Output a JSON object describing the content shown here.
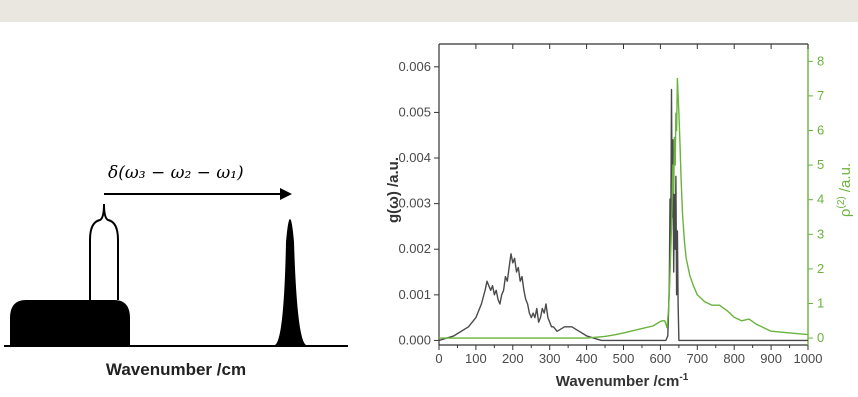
{
  "schematic": {
    "xlabel": "Wavenumber /cm",
    "equation": "δ(ω₃ − ω₂ − ω₁)"
  },
  "chart_data": {
    "type": "line",
    "xlabel": "Wavenumber /cm",
    "xlabel_sup": "-1",
    "ylabel_left": "g(ω) /a.u.",
    "ylabel_right": "ρ",
    "ylabel_right_sup": "(2)",
    "ylabel_right_suffix": " /a.u.",
    "xlim": [
      0,
      1000
    ],
    "ylim_left": [
      -0.0001,
      0.0065
    ],
    "ylim_right": [
      -0.2,
      8.5
    ],
    "x_ticks": [
      "0",
      "100",
      "200",
      "300",
      "400",
      "500",
      "600",
      "700",
      "800",
      "900",
      "1000"
    ],
    "y_left_ticks": [
      "0.000",
      "0.001",
      "0.002",
      "0.003",
      "0.004",
      "0.005",
      "0.006"
    ],
    "y_right_ticks": [
      "0",
      "1",
      "2",
      "3",
      "4",
      "5",
      "6",
      "7",
      "8"
    ],
    "colors": {
      "left_series": "#4a4a4a",
      "right_series": "#6ab33c"
    },
    "series": [
      {
        "axis": "left",
        "x": [
          0,
          40,
          80,
          100,
          115,
          125,
          130,
          135,
          140,
          145,
          150,
          155,
          160,
          165,
          170,
          175,
          180,
          185,
          190,
          195,
          200,
          205,
          210,
          215,
          220,
          225,
          230,
          235,
          240,
          245,
          250,
          255,
          260,
          265,
          270,
          275,
          280,
          285,
          290,
          295,
          300,
          305,
          310,
          320,
          340,
          360,
          380,
          400,
          440,
          480,
          520,
          560,
          600,
          615,
          620,
          622,
          624,
          626,
          628,
          630,
          632,
          634,
          636,
          638,
          640,
          642,
          644,
          646,
          648,
          650,
          655,
          660,
          680,
          720,
          800,
          900,
          1000
        ],
        "y": [
          0.0,
          0.0001,
          0.0003,
          0.0005,
          0.0008,
          0.0011,
          0.0013,
          0.0012,
          0.0011,
          0.0012,
          0.001,
          0.0011,
          0.0009,
          0.0008,
          0.001,
          0.0011,
          0.0014,
          0.0013,
          0.0016,
          0.0019,
          0.0017,
          0.0018,
          0.0015,
          0.0016,
          0.0013,
          0.0014,
          0.0011,
          0.0009,
          0.0008,
          0.0006,
          0.0005,
          0.0006,
          0.0005,
          0.0007,
          0.0004,
          0.0005,
          0.0007,
          0.0006,
          0.0008,
          0.0005,
          0.0004,
          0.0003,
          0.0003,
          0.0002,
          0.0003,
          0.0003,
          0.0002,
          0.0001,
          0.0,
          0.0,
          0.0,
          0.0,
          0.0,
          0.0,
          0.0001,
          0.0006,
          0.0012,
          0.0031,
          0.002,
          0.0055,
          0.0027,
          0.0044,
          0.0015,
          0.0032,
          0.002,
          0.0036,
          0.001,
          0.0024,
          0.0008,
          0.0,
          0.0,
          0.0,
          0.0,
          0.0,
          0.0,
          0.0,
          0.0
        ]
      },
      {
        "axis": "right",
        "x": [
          0,
          100,
          200,
          300,
          400,
          450,
          480,
          500,
          520,
          540,
          560,
          580,
          595,
          605,
          612,
          618,
          622,
          625,
          628,
          630,
          632,
          634,
          636,
          638,
          640,
          642,
          644,
          646,
          648,
          650,
          653,
          656,
          660,
          665,
          670,
          680,
          690,
          700,
          720,
          740,
          760,
          780,
          800,
          820,
          840,
          860,
          880,
          900,
          950,
          1000
        ],
        "y": [
          0.0,
          0.0,
          0.0,
          0.0,
          0.0,
          0.05,
          0.1,
          0.15,
          0.2,
          0.25,
          0.3,
          0.35,
          0.45,
          0.5,
          0.5,
          0.3,
          0.8,
          1.5,
          2.5,
          3.2,
          4.0,
          5.0,
          4.2,
          5.8,
          5.0,
          6.5,
          6.0,
          7.5,
          7.0,
          6.5,
          5.6,
          4.6,
          3.6,
          2.8,
          2.3,
          1.8,
          1.5,
          1.25,
          1.05,
          0.95,
          0.95,
          0.8,
          0.6,
          0.5,
          0.55,
          0.4,
          0.3,
          0.2,
          0.15,
          0.1
        ]
      }
    ]
  }
}
